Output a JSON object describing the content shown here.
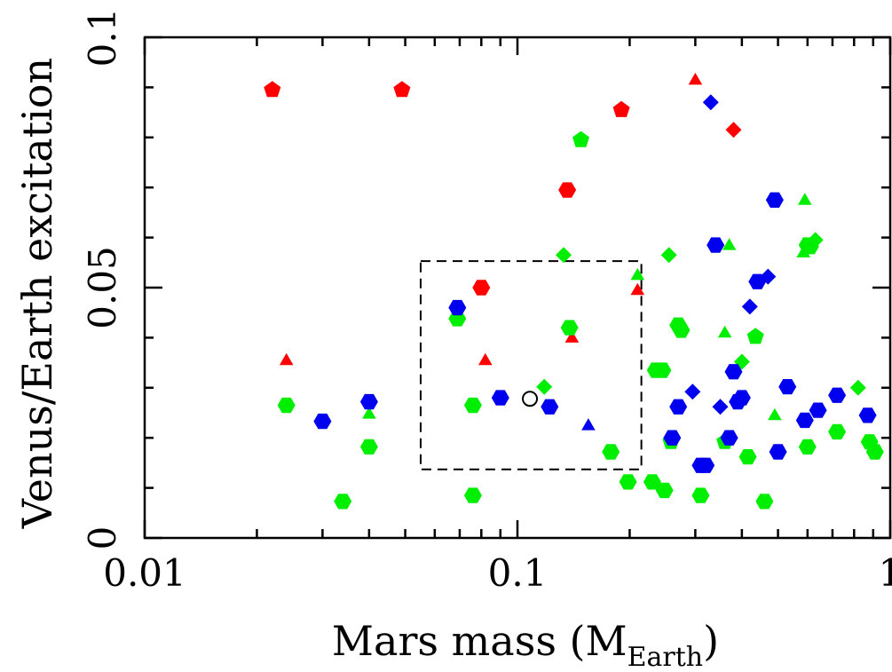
{
  "chart_data": {
    "type": "scatter",
    "xlabel": "Mars mass (M",
    "xlabel_sub": "Earth",
    "xlabel_close": ")",
    "ylabel": "Venus/Earth excitation",
    "xscale": "log",
    "xlim": [
      0.01,
      1
    ],
    "ylim": [
      0,
      0.1
    ],
    "xticks": [
      {
        "value": 0.01,
        "label": "0.01"
      },
      {
        "value": 0.1,
        "label": "0.1"
      },
      {
        "value": 1,
        "label": "1"
      }
    ],
    "yticks": [
      {
        "value": 0,
        "label": "0"
      },
      {
        "value": 0.05,
        "label": "0.05"
      },
      {
        "value": 0.1,
        "label": "0.1"
      }
    ],
    "grid": false,
    "legend": "none",
    "colors": {
      "red": "#ff0000",
      "green": "#00ee00",
      "blue": "#0000ee",
      "black": "#000000"
    },
    "highlight_box": {
      "x": [
        0.055,
        0.215
      ],
      "y": [
        0.0137,
        0.0553
      ]
    },
    "points": [
      {
        "x": 0.022,
        "y": 0.0895,
        "marker": "pentagon",
        "color": "red"
      },
      {
        "x": 0.049,
        "y": 0.0895,
        "marker": "pentagon",
        "color": "red"
      },
      {
        "x": 0.024,
        "y": 0.0355,
        "marker": "triangle",
        "color": "red"
      },
      {
        "x": 0.082,
        "y": 0.0355,
        "marker": "triangle",
        "color": "red"
      },
      {
        "x": 0.08,
        "y": 0.05,
        "marker": "hexagon",
        "color": "red"
      },
      {
        "x": 0.136,
        "y": 0.0695,
        "marker": "hexagon",
        "color": "red"
      },
      {
        "x": 0.14,
        "y": 0.04,
        "marker": "triangle",
        "color": "red"
      },
      {
        "x": 0.19,
        "y": 0.0855,
        "marker": "pentagon",
        "color": "red"
      },
      {
        "x": 0.21,
        "y": 0.0495,
        "marker": "triangle",
        "color": "red"
      },
      {
        "x": 0.3,
        "y": 0.0915,
        "marker": "triangle",
        "color": "red"
      },
      {
        "x": 0.38,
        "y": 0.0815,
        "marker": "diamond",
        "color": "red"
      },
      {
        "x": 0.024,
        "y": 0.0265,
        "marker": "hexagon",
        "color": "green"
      },
      {
        "x": 0.034,
        "y": 0.0073,
        "marker": "hexagon",
        "color": "green"
      },
      {
        "x": 0.04,
        "y": 0.0248,
        "marker": "triangle",
        "color": "green"
      },
      {
        "x": 0.04,
        "y": 0.0182,
        "marker": "hexagon",
        "color": "green"
      },
      {
        "x": 0.069,
        "y": 0.0438,
        "marker": "hexagon",
        "color": "green"
      },
      {
        "x": 0.076,
        "y": 0.0265,
        "marker": "hexagon",
        "color": "green"
      },
      {
        "x": 0.076,
        "y": 0.0085,
        "marker": "hexagon",
        "color": "green"
      },
      {
        "x": 0.118,
        "y": 0.0302,
        "marker": "diamond",
        "color": "green"
      },
      {
        "x": 0.133,
        "y": 0.0565,
        "marker": "diamond",
        "color": "green"
      },
      {
        "x": 0.138,
        "y": 0.042,
        "marker": "hexagon",
        "color": "green"
      },
      {
        "x": 0.148,
        "y": 0.0795,
        "marker": "pentagon",
        "color": "green"
      },
      {
        "x": 0.178,
        "y": 0.0172,
        "marker": "hexagon",
        "color": "green"
      },
      {
        "x": 0.198,
        "y": 0.0112,
        "marker": "hexagon",
        "color": "green"
      },
      {
        "x": 0.21,
        "y": 0.0525,
        "marker": "triangle",
        "color": "green"
      },
      {
        "x": 0.23,
        "y": 0.0112,
        "marker": "hexagon",
        "color": "green"
      },
      {
        "x": 0.235,
        "y": 0.0335,
        "marker": "hexagon",
        "color": "green"
      },
      {
        "x": 0.245,
        "y": 0.0335,
        "marker": "hexagon",
        "color": "green"
      },
      {
        "x": 0.248,
        "y": 0.0095,
        "marker": "hexagon",
        "color": "green"
      },
      {
        "x": 0.255,
        "y": 0.0565,
        "marker": "diamond",
        "color": "green"
      },
      {
        "x": 0.258,
        "y": 0.0192,
        "marker": "pentagon",
        "color": "green"
      },
      {
        "x": 0.27,
        "y": 0.0425,
        "marker": "hexagon",
        "color": "green"
      },
      {
        "x": 0.275,
        "y": 0.0415,
        "marker": "hexagon",
        "color": "green"
      },
      {
        "x": 0.31,
        "y": 0.0085,
        "marker": "hexagon",
        "color": "green"
      },
      {
        "x": 0.36,
        "y": 0.0192,
        "marker": "pentagon",
        "color": "green"
      },
      {
        "x": 0.36,
        "y": 0.041,
        "marker": "triangle",
        "color": "green"
      },
      {
        "x": 0.37,
        "y": 0.0585,
        "marker": "triangle",
        "color": "green"
      },
      {
        "x": 0.4,
        "y": 0.0352,
        "marker": "diamond",
        "color": "green"
      },
      {
        "x": 0.415,
        "y": 0.0162,
        "marker": "hexagon",
        "color": "green"
      },
      {
        "x": 0.435,
        "y": 0.0402,
        "marker": "pentagon",
        "color": "green"
      },
      {
        "x": 0.46,
        "y": 0.0073,
        "marker": "hexagon",
        "color": "green"
      },
      {
        "x": 0.49,
        "y": 0.0245,
        "marker": "triangle",
        "color": "green"
      },
      {
        "x": 0.59,
        "y": 0.0675,
        "marker": "triangle",
        "color": "green"
      },
      {
        "x": 0.585,
        "y": 0.057,
        "marker": "triangle",
        "color": "green"
      },
      {
        "x": 0.6,
        "y": 0.0585,
        "marker": "hexagon",
        "color": "green"
      },
      {
        "x": 0.61,
        "y": 0.0582,
        "marker": "hexagon",
        "color": "green"
      },
      {
        "x": 0.63,
        "y": 0.0595,
        "marker": "diamond",
        "color": "green"
      },
      {
        "x": 0.6,
        "y": 0.0182,
        "marker": "hexagon",
        "color": "green"
      },
      {
        "x": 0.72,
        "y": 0.0212,
        "marker": "hexagon",
        "color": "green"
      },
      {
        "x": 0.82,
        "y": 0.03,
        "marker": "diamond",
        "color": "green"
      },
      {
        "x": 0.88,
        "y": 0.0192,
        "marker": "hexagon",
        "color": "green"
      },
      {
        "x": 0.91,
        "y": 0.0172,
        "marker": "hexagon",
        "color": "green"
      },
      {
        "x": 0.03,
        "y": 0.0233,
        "marker": "hexagon",
        "color": "blue"
      },
      {
        "x": 0.04,
        "y": 0.0272,
        "marker": "hexagon",
        "color": "blue"
      },
      {
        "x": 0.069,
        "y": 0.046,
        "marker": "hexagon",
        "color": "blue"
      },
      {
        "x": 0.09,
        "y": 0.028,
        "marker": "hexagon",
        "color": "blue"
      },
      {
        "x": 0.122,
        "y": 0.0262,
        "marker": "hexagon",
        "color": "blue"
      },
      {
        "x": 0.155,
        "y": 0.0225,
        "marker": "triangle",
        "color": "blue"
      },
      {
        "x": 0.26,
        "y": 0.02,
        "marker": "hexagon",
        "color": "blue"
      },
      {
        "x": 0.27,
        "y": 0.0262,
        "marker": "hexagon",
        "color": "blue"
      },
      {
        "x": 0.295,
        "y": 0.0292,
        "marker": "diamond",
        "color": "blue"
      },
      {
        "x": 0.31,
        "y": 0.0145,
        "marker": "hexagon",
        "color": "blue"
      },
      {
        "x": 0.32,
        "y": 0.0145,
        "marker": "hexagon",
        "color": "blue"
      },
      {
        "x": 0.33,
        "y": 0.087,
        "marker": "diamond",
        "color": "blue"
      },
      {
        "x": 0.34,
        "y": 0.0585,
        "marker": "hexagon",
        "color": "blue"
      },
      {
        "x": 0.35,
        "y": 0.0262,
        "marker": "diamond",
        "color": "blue"
      },
      {
        "x": 0.37,
        "y": 0.02,
        "marker": "hexagon",
        "color": "blue"
      },
      {
        "x": 0.38,
        "y": 0.0332,
        "marker": "hexagon",
        "color": "blue"
      },
      {
        "x": 0.39,
        "y": 0.0272,
        "marker": "hexagon",
        "color": "blue"
      },
      {
        "x": 0.4,
        "y": 0.028,
        "marker": "hexagon",
        "color": "blue"
      },
      {
        "x": 0.42,
        "y": 0.0462,
        "marker": "diamond",
        "color": "blue"
      },
      {
        "x": 0.44,
        "y": 0.0512,
        "marker": "hexagon",
        "color": "blue"
      },
      {
        "x": 0.47,
        "y": 0.0522,
        "marker": "diamond",
        "color": "blue"
      },
      {
        "x": 0.49,
        "y": 0.0675,
        "marker": "hexagon",
        "color": "blue"
      },
      {
        "x": 0.5,
        "y": 0.0172,
        "marker": "hexagon",
        "color": "blue"
      },
      {
        "x": 0.53,
        "y": 0.0302,
        "marker": "hexagon",
        "color": "blue"
      },
      {
        "x": 0.59,
        "y": 0.0235,
        "marker": "hexagon",
        "color": "blue"
      },
      {
        "x": 0.64,
        "y": 0.0255,
        "marker": "hexagon",
        "color": "blue"
      },
      {
        "x": 0.72,
        "y": 0.0285,
        "marker": "hexagon",
        "color": "blue"
      },
      {
        "x": 0.87,
        "y": 0.0245,
        "marker": "hexagon",
        "color": "blue"
      },
      {
        "x": 0.108,
        "y": 0.0278,
        "marker": "open-circle",
        "color": "black"
      }
    ]
  }
}
